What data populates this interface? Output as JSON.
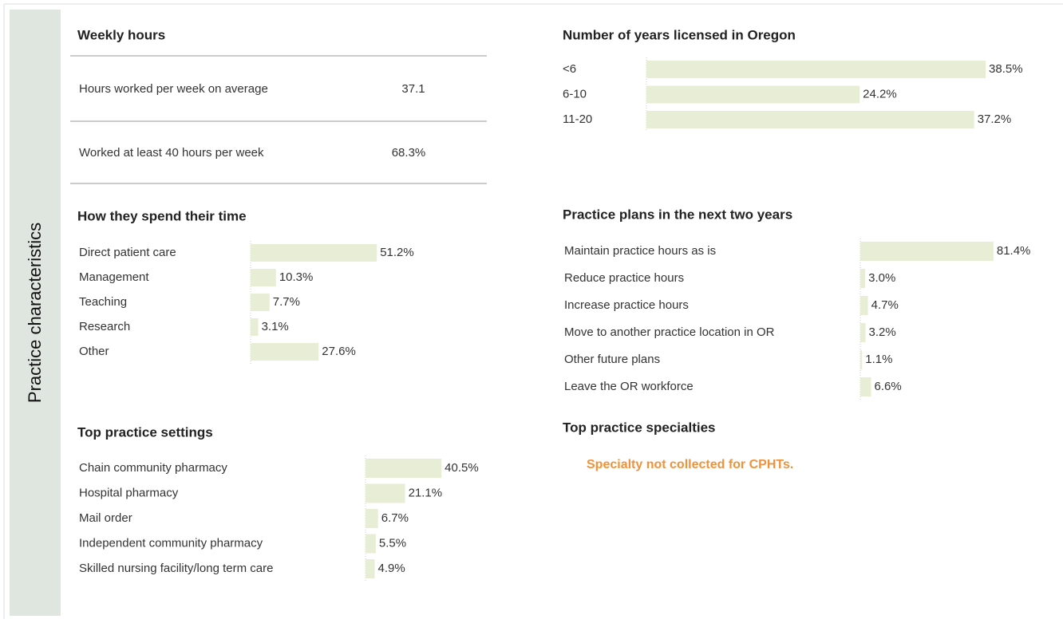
{
  "sidebar_label": "Practice characteristics",
  "weekly_hours": {
    "title": "Weekly hours",
    "rows": [
      [
        "Hours worked per week on average",
        "37.1"
      ],
      [
        "Worked at least 40 hours per week",
        "68.3%"
      ]
    ]
  },
  "specialties": {
    "title": "Top practice specialties",
    "note": "Specialty not collected for CPHTs."
  },
  "chart_data": [
    {
      "type": "bar",
      "orientation": "horizontal",
      "title": "Number of years licensed in Oregon",
      "color": "#e8eed6",
      "categories": [
        "<6",
        "6-10",
        "11-20"
      ],
      "values": [
        38.5,
        24.2,
        37.2
      ],
      "value_labels": [
        "38.5%",
        "24.2%",
        "37.2%"
      ]
    },
    {
      "type": "bar",
      "orientation": "horizontal",
      "title": "How they spend their time",
      "color": "#e8eed6",
      "categories": [
        "Direct patient care",
        "Management",
        "Teaching",
        "Research",
        "Other"
      ],
      "values": [
        51.2,
        10.3,
        7.7,
        3.1,
        27.6
      ],
      "value_labels": [
        "51.2%",
        "10.3%",
        "7.7%",
        "3.1%",
        "27.6%"
      ]
    },
    {
      "type": "bar",
      "orientation": "horizontal",
      "title": "Practice plans in the next two years",
      "color": "#e8eed6",
      "categories": [
        "Maintain practice hours as is",
        "Reduce practice hours",
        "Increase practice hours",
        "Move to another practice location in OR",
        "Other future plans",
        "Leave the OR workforce"
      ],
      "values": [
        81.4,
        3.0,
        4.7,
        3.2,
        1.1,
        6.6
      ],
      "value_labels": [
        "81.4%",
        "3.0%",
        "4.7%",
        "3.2%",
        "1.1%",
        "6.6%"
      ]
    },
    {
      "type": "bar",
      "orientation": "horizontal",
      "title": "Top practice settings",
      "color": "#e8eed6",
      "categories": [
        "Chain community pharmacy",
        "Hospital pharmacy",
        "Mail order",
        "Independent community pharmacy",
        "Skilled nursing facility/long term care"
      ],
      "values": [
        40.5,
        21.1,
        6.7,
        5.5,
        4.9
      ],
      "value_labels": [
        "40.5%",
        "21.1%",
        "6.7%",
        "5.5%",
        "4.9%"
      ]
    }
  ]
}
